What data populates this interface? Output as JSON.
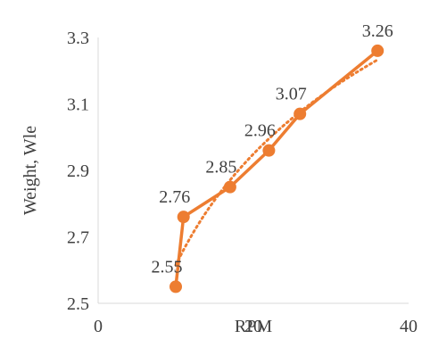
{
  "chart_data": {
    "type": "line",
    "title": "",
    "xlabel": "RPM",
    "ylabel": "Weight, Wle",
    "xlim": [
      0,
      40
    ],
    "ylim": [
      2.5,
      3.3
    ],
    "x_ticks": [
      "0",
      "20",
      "40"
    ],
    "y_ticks": [
      "2.5",
      "2.7",
      "2.9",
      "3.1",
      "3.3"
    ],
    "grid": false,
    "legend": "none",
    "series": [
      {
        "x": [
          10,
          11,
          17,
          22,
          26,
          36
        ],
        "values": [
          2.55,
          2.76,
          2.85,
          2.96,
          3.07,
          3.26
        ],
        "data_labels": [
          "2.55",
          "2.76",
          "2.85",
          "2.96",
          "3.07",
          "3.26"
        ],
        "color": "#ed7d31",
        "marker": "circle",
        "trendline": "dotted"
      }
    ]
  }
}
